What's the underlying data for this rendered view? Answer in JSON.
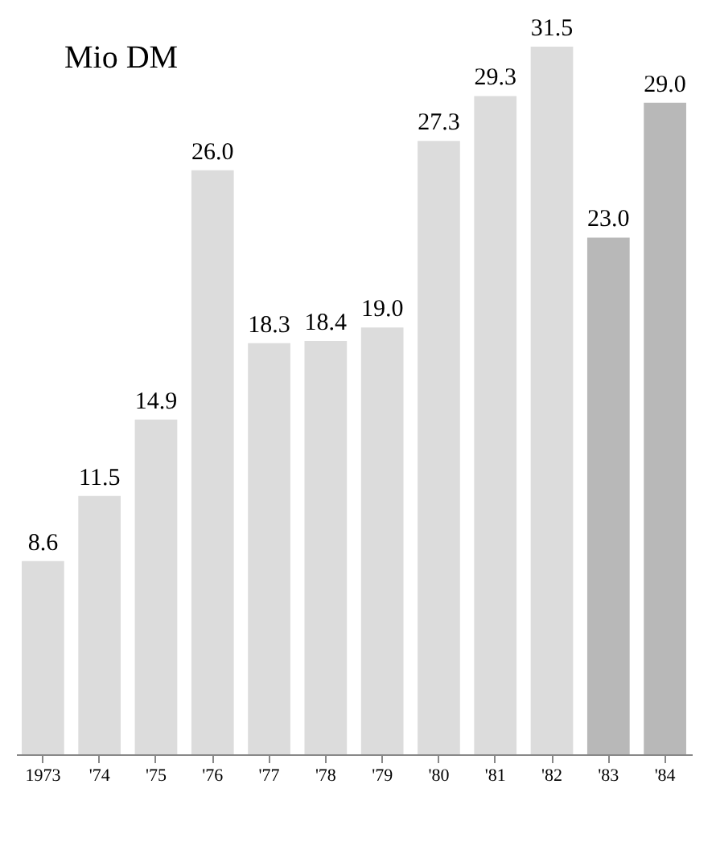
{
  "chart_data": {
    "type": "bar",
    "title": "Mio DM",
    "categories": [
      "1973",
      "'74",
      "'75",
      "'76",
      "'77",
      "'78",
      "'79",
      "'80",
      "'81",
      "'82",
      "'83",
      "'84"
    ],
    "values": [
      8.6,
      11.5,
      14.9,
      26.0,
      18.3,
      18.4,
      19.0,
      27.3,
      29.3,
      31.5,
      23.0,
      29.0
    ],
    "value_labels": [
      "8.6",
      "11.5",
      "14.9",
      "26.0",
      "18.3",
      "18.4",
      "19.0",
      "27.3",
      "29.3",
      "31.5",
      "23.0",
      "29.0"
    ],
    "colors": [
      "#dcdcdc",
      "#dcdcdc",
      "#dcdcdc",
      "#dcdcdc",
      "#dcdcdc",
      "#dcdcdc",
      "#dcdcdc",
      "#dcdcdc",
      "#dcdcdc",
      "#dcdcdc",
      "#b8b8b8",
      "#b8b8b8"
    ]
  }
}
